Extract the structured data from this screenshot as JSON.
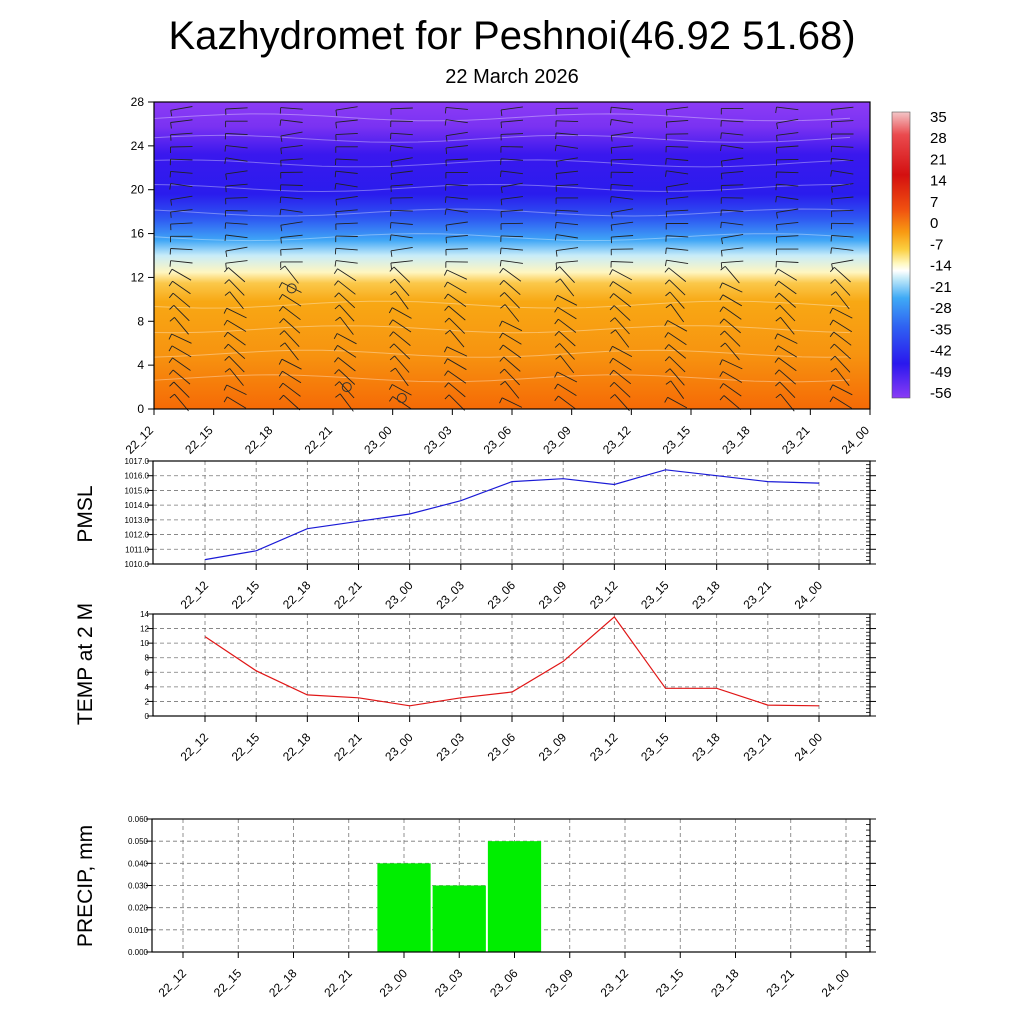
{
  "header": {
    "title": "Kazhydromet for Peshnoi(46.92 51.68)",
    "date": "22 March 2026"
  },
  "chart_data": [
    {
      "type": "heatmap",
      "name": "temperature-height-section",
      "y_ticks": [
        "0",
        "4",
        "8",
        "12",
        "16",
        "20",
        "24",
        "28"
      ],
      "ylim": [
        0,
        28
      ],
      "x_ticks": [
        "22_12",
        "22_15",
        "22_18",
        "22_21",
        "23_00",
        "23_03",
        "23_06",
        "23_09",
        "23_12",
        "23_15",
        "23_18",
        "23_21",
        "24_00"
      ],
      "colorbar_labels": [
        "35",
        "28",
        "21",
        "14",
        "7",
        "0",
        "-7",
        "-14",
        "-21",
        "-28",
        "-35",
        "-42",
        "-49",
        "-56"
      ],
      "colors": {
        "top": "#8a3cf5",
        "upper": "#2d16ee",
        "mid": "#3a8cf5",
        "light": "#bfe6f8",
        "transition": "#fff4b0",
        "warm": "#f7a010",
        "hot": "#f56e08"
      }
    },
    {
      "type": "line",
      "name": "pmsl",
      "ylabel": "PMSL",
      "categories": [
        "22_12",
        "22_15",
        "22_18",
        "22_21",
        "23_00",
        "23_03",
        "23_06",
        "23_09",
        "23_12",
        "23_15",
        "23_18",
        "23_21",
        "24_00"
      ],
      "values": [
        1010.3,
        1010.9,
        1012.4,
        1012.9,
        1013.4,
        1014.3,
        1015.6,
        1015.8,
        1015.4,
        1016.4,
        1016.0,
        1015.6,
        1015.5
      ],
      "ylim": [
        1010,
        1017
      ],
      "y_ticks": [
        "1010.0",
        "1011.0",
        "1012.0",
        "1013.0",
        "1014.0",
        "1015.0",
        "1016.0",
        "1017.0"
      ],
      "color": "#1a1ad6"
    },
    {
      "type": "line",
      "name": "temp2m",
      "ylabel": "TEMP at 2 M",
      "categories": [
        "22_12",
        "22_15",
        "22_18",
        "22_21",
        "23_00",
        "23_03",
        "23_06",
        "23_09",
        "23_12",
        "23_15",
        "23_18",
        "23_21",
        "24_00"
      ],
      "values": [
        10.9,
        6.2,
        2.9,
        2.5,
        1.4,
        2.5,
        3.3,
        7.5,
        13.6,
        3.8,
        3.8,
        1.5,
        1.4
      ],
      "ylim": [
        0,
        14
      ],
      "y_ticks": [
        "0",
        "2",
        "4",
        "6",
        "8",
        "10",
        "12",
        "14"
      ],
      "color": "#e01616"
    },
    {
      "type": "bar",
      "name": "precip",
      "ylabel": "PRECIP, mm",
      "categories": [
        "22_12",
        "22_15",
        "22_18",
        "22_21",
        "23_00",
        "23_03",
        "23_06",
        "23_09",
        "23_12",
        "23_15",
        "23_18",
        "23_21",
        "24_00"
      ],
      "values": [
        0,
        0,
        0,
        0,
        0.04,
        0.03,
        0.05,
        0,
        0,
        0,
        0,
        0,
        0
      ],
      "ylim": [
        0,
        0.06
      ],
      "y_ticks": [
        "0.000",
        "0.010",
        "0.020",
        "0.030",
        "0.040",
        "0.050",
        "0.060"
      ],
      "color": "#00ee00"
    }
  ]
}
